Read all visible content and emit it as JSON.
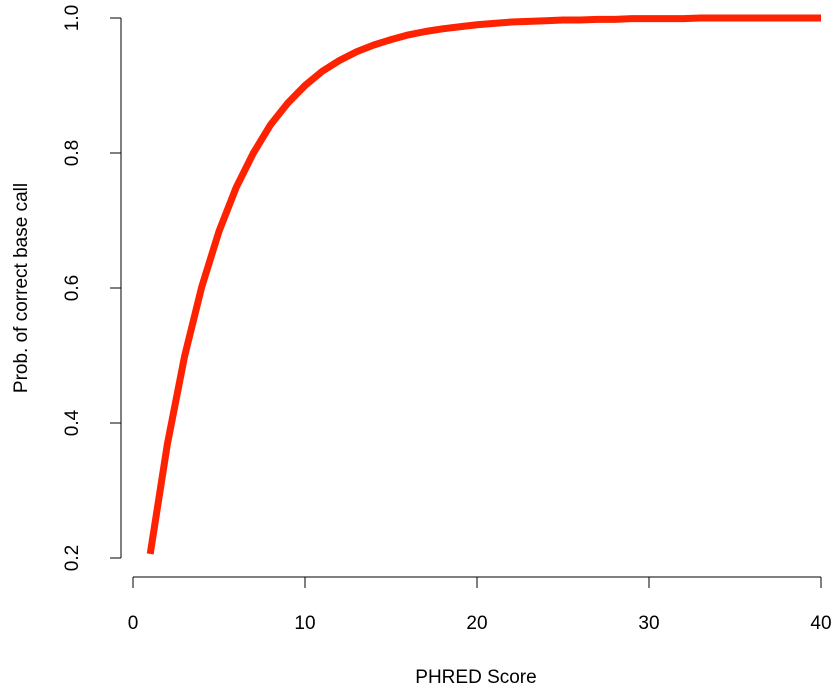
{
  "chart_data": {
    "type": "line",
    "xlabel": "PHRED Score",
    "ylabel": "Prob. of correct base call",
    "xlim": [
      0,
      40
    ],
    "ylim": [
      0.2,
      1.0
    ],
    "x_ticks": [
      "0",
      "10",
      "20",
      "30",
      "40"
    ],
    "y_ticks": [
      "0.2",
      "0.4",
      "0.6",
      "0.8",
      "1.0"
    ],
    "grid": false,
    "legend": "none",
    "series": [
      {
        "color": "#ff2200",
        "x": [
          1,
          2,
          3,
          4,
          5,
          6,
          7,
          8,
          9,
          10,
          11,
          12,
          13,
          14,
          15,
          16,
          17,
          18,
          19,
          20,
          21,
          22,
          23,
          24,
          25,
          26,
          27,
          28,
          29,
          30,
          31,
          32,
          33,
          34,
          35,
          36,
          37,
          38,
          39,
          40
        ],
        "values": [
          0.206,
          0.369,
          0.499,
          0.602,
          0.684,
          0.749,
          0.8,
          0.842,
          0.874,
          0.9,
          0.921,
          0.937,
          0.95,
          0.96,
          0.968,
          0.975,
          0.98,
          0.984,
          0.987,
          0.99,
          0.992,
          0.994,
          0.995,
          0.996,
          0.997,
          0.997,
          0.998,
          0.998,
          0.999,
          0.999,
          0.999,
          0.999,
          1.0,
          1.0,
          1.0,
          1.0,
          1.0,
          1.0,
          1.0,
          1.0
        ]
      }
    ]
  }
}
